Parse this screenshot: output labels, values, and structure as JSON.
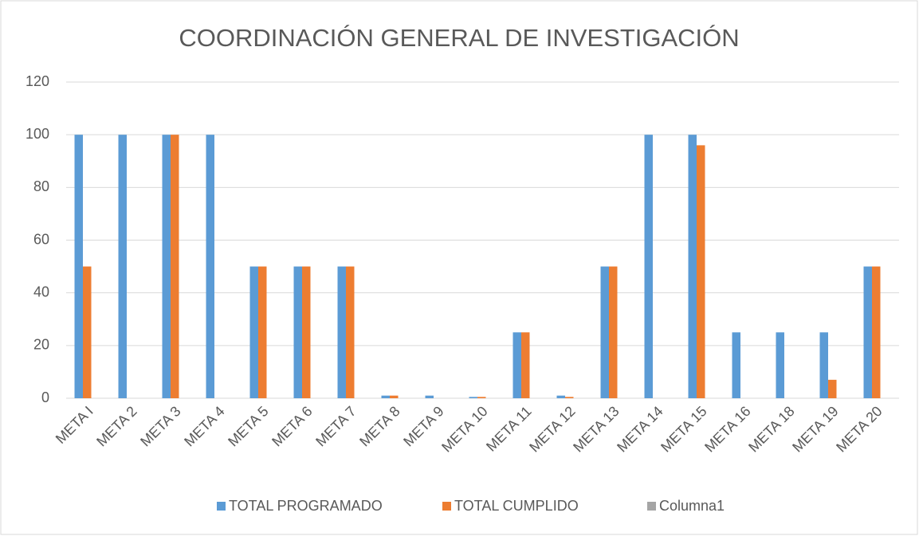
{
  "chart_data": {
    "type": "bar",
    "title": "COORDINACIÓN GENERAL DE INVESTIGACIÓN",
    "categories": [
      "META I",
      "META 2",
      "META 3",
      "META 4",
      "META 5",
      "META 6",
      "META 7",
      "META 8",
      "META 9",
      "META 10",
      "META 11",
      "META 12",
      "META 13",
      "META 14",
      "META 15",
      "META 16",
      "META 18",
      "META 19",
      "META 20"
    ],
    "series": [
      {
        "name": "TOTAL PROGRAMADO",
        "color": "#5b9bd5",
        "values": [
          100,
          100,
          100,
          100,
          50,
          50,
          50,
          1,
          1,
          0.5,
          25,
          1,
          50,
          100,
          100,
          25,
          25,
          25,
          50
        ]
      },
      {
        "name": "TOTAL CUMPLIDO",
        "color": "#ed7d31",
        "values": [
          50,
          0,
          100,
          0,
          50,
          50,
          50,
          1,
          0,
          0.5,
          25,
          0.5,
          50,
          0,
          96,
          0,
          0,
          7,
          50
        ]
      },
      {
        "name": "Columna1",
        "color": "#a5a5a5",
        "values": [
          null,
          null,
          null,
          null,
          null,
          null,
          null,
          null,
          null,
          null,
          null,
          null,
          null,
          null,
          null,
          null,
          null,
          null,
          null
        ]
      }
    ],
    "ylim": [
      0,
      120
    ],
    "yticks": [
      0,
      20,
      40,
      60,
      80,
      100,
      120
    ],
    "grid": true,
    "legend": "bottom"
  }
}
